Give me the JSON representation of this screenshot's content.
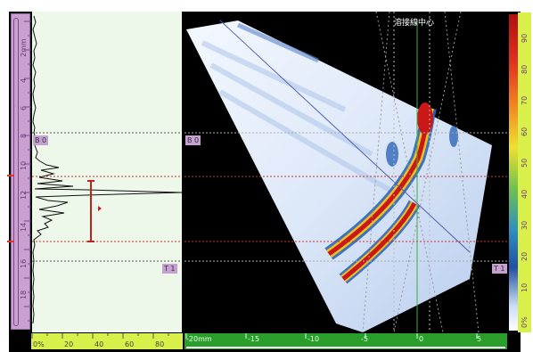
{
  "title": "溶接線中心",
  "gate_labels": {
    "b0_left": "B 0",
    "b0_right": "B 0",
    "t1_left": "T 1",
    "t1_right": "T 1"
  },
  "left_ruler_labels": [
    "2mm",
    "4",
    "6",
    "8",
    "10",
    "12",
    "14",
    "16",
    "18"
  ],
  "ascan_axis_labels": [
    "0%",
    "20",
    "40",
    "60",
    "80"
  ],
  "sscan_axis_labels": [
    "-20mm",
    "-15",
    "-10",
    "-5",
    "0",
    "5"
  ],
  "colorbar_labels": [
    "90",
    "80",
    "70",
    "60",
    "50",
    "40",
    "30",
    "20",
    "10",
    "0%"
  ],
  "colors": {
    "ruler_purple": "#caa0d0",
    "ruler_yellow": "#d9f04a",
    "ruler_green": "#2a9e2a",
    "gate_red": "#e03030"
  }
}
